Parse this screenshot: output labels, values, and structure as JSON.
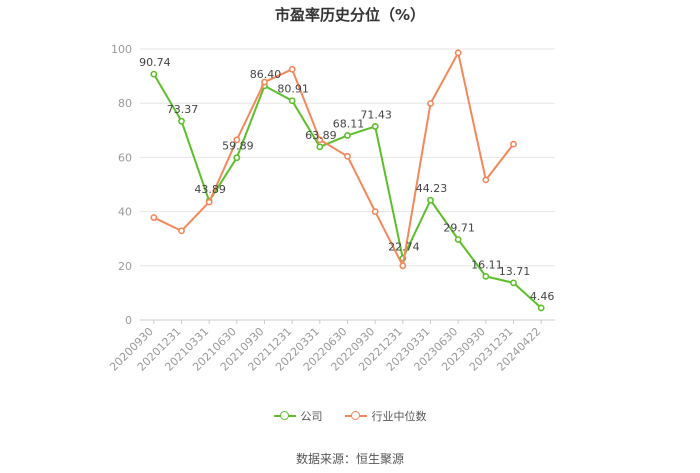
{
  "title": "市盈率历史分位（%）",
  "source": "数据来源：恒生聚源",
  "colors": {
    "company": "#5cbf2a",
    "industry": "#f5875a",
    "grid": "#e6e6e6",
    "axis_text": "#9a9a9a"
  },
  "legend": [
    {
      "label": "公司",
      "color": "#5cbf2a"
    },
    {
      "label": "行业中位数",
      "color": "#f5875a"
    }
  ],
  "chart_data": {
    "type": "line",
    "title": "市盈率历史分位（%）",
    "xlabel": "",
    "ylabel": "",
    "ylim": [
      0,
      100
    ],
    "yticks": [
      0,
      20,
      40,
      60,
      80,
      100
    ],
    "grid": true,
    "legend_position": "bottom",
    "categories": [
      "20200930",
      "20201231",
      "20210331",
      "20210630",
      "20210930",
      "20211231",
      "20220331",
      "20220630",
      "20220930",
      "20221231",
      "20230331",
      "20230630",
      "20230930",
      "20231231",
      "20240422"
    ],
    "series": [
      {
        "name": "公司",
        "color": "#5cbf2a",
        "values": [
          90.74,
          73.37,
          43.89,
          59.89,
          86.4,
          80.91,
          63.89,
          68.11,
          71.43,
          22.74,
          44.23,
          29.71,
          16.11,
          13.71,
          4.46
        ],
        "labels": [
          "90.74",
          "73.37",
          "43.89",
          "59.89",
          "86.40",
          "80.91",
          "63.89",
          "68.11",
          "71.43",
          "22.74",
          "44.23",
          "29.71",
          "16.11",
          "13.71",
          "4.46"
        ]
      },
      {
        "name": "行业中位数",
        "color": "#f5875a",
        "values": [
          37.8,
          32.9,
          43.5,
          66.5,
          87.8,
          92.5,
          66.5,
          60.4,
          40.0,
          20.0,
          79.9,
          98.6,
          51.7,
          64.9,
          null
        ]
      }
    ]
  }
}
